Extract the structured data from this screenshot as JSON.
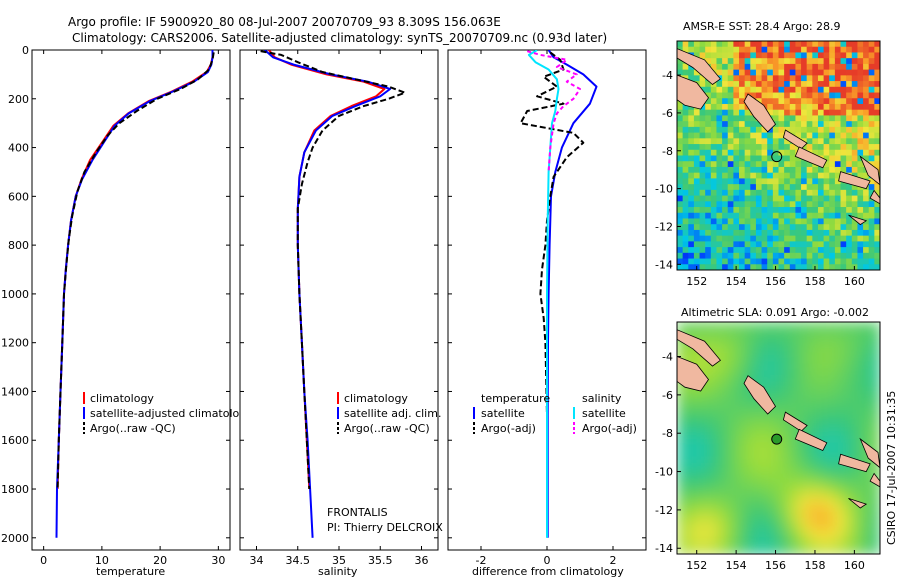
{
  "figure": {
    "title_line1": "Argo profile: IF 5900920_80 08-Jul-2007 20070709_93 8.309S 156.063E",
    "title_line2": "Climatology: CARS2006. Satellite-adjusted climatology: synTS_20070709.nc (0.93d later)",
    "side_stamp": "CSIRO 17-Jul-2007 10:31:35"
  },
  "colors": {
    "climatology": "#ff0000",
    "satellite": "#0000ff",
    "argo": "#000000",
    "salinity_satellite": "#00e5ff",
    "salinity_argo": "#ff00ff"
  },
  "chart_data": [
    {
      "type": "line",
      "name": "temperature",
      "xlabel": "temperature",
      "xlim": [
        -2,
        32
      ],
      "ylim": [
        2050,
        0
      ],
      "xticks": [
        0,
        10,
        20,
        30
      ],
      "yticks": [
        0,
        200,
        400,
        600,
        800,
        1000,
        1200,
        1400,
        1600,
        1800,
        2000
      ],
      "legend": [
        "climatology",
        "satellite-adjusted climatology",
        "Argo(..raw -QC)"
      ],
      "series": [
        {
          "name": "climatology",
          "color_key": "climatology",
          "dash": "",
          "points": [
            [
              29.0,
              0
            ],
            [
              29.0,
              30
            ],
            [
              28.7,
              60
            ],
            [
              28.0,
              90
            ],
            [
              25.5,
              130
            ],
            [
              22.0,
              170
            ],
            [
              18.0,
              210
            ],
            [
              14.5,
              260
            ],
            [
              12.0,
              310
            ],
            [
              10.0,
              380
            ],
            [
              8.0,
              450
            ],
            [
              6.5,
              530
            ],
            [
              5.5,
              600
            ],
            [
              4.7,
              700
            ],
            [
              4.2,
              800
            ],
            [
              3.8,
              900
            ],
            [
              3.5,
              1000
            ],
            [
              3.2,
              1200
            ],
            [
              2.9,
              1400
            ],
            [
              2.6,
              1600
            ],
            [
              2.4,
              1800
            ]
          ]
        },
        {
          "name": "satellite-adjusted climatology",
          "color_key": "satellite",
          "dash": "",
          "points": [
            [
              29.0,
              0
            ],
            [
              29.0,
              30
            ],
            [
              28.8,
              60
            ],
            [
              28.2,
              90
            ],
            [
              25.8,
              130
            ],
            [
              22.2,
              170
            ],
            [
              18.2,
              210
            ],
            [
              14.6,
              260
            ],
            [
              12.2,
              310
            ],
            [
              10.3,
              380
            ],
            [
              8.4,
              450
            ],
            [
              6.6,
              530
            ],
            [
              5.5,
              600
            ],
            [
              4.7,
              700
            ],
            [
              4.2,
              800
            ],
            [
              3.8,
              900
            ],
            [
              3.5,
              1000
            ],
            [
              3.2,
              1200
            ],
            [
              2.9,
              1400
            ],
            [
              2.6,
              1600
            ],
            [
              2.3,
              1800
            ],
            [
              2.2,
              2000
            ]
          ]
        },
        {
          "name": "Argo(..raw -QC)",
          "color_key": "argo",
          "dash": "6,3",
          "points": [
            [
              29.2,
              10
            ],
            [
              29.0,
              40
            ],
            [
              28.4,
              80
            ],
            [
              26.5,
              120
            ],
            [
              23.5,
              160
            ],
            [
              19.5,
              200
            ],
            [
              16.0,
              250
            ],
            [
              13.0,
              300
            ],
            [
              11.0,
              350
            ],
            [
              9.0,
              420
            ],
            [
              7.0,
              500
            ],
            [
              5.8,
              580
            ],
            [
              4.9,
              680
            ],
            [
              4.3,
              780
            ],
            [
              3.9,
              880
            ],
            [
              3.5,
              1000
            ],
            [
              3.2,
              1200
            ],
            [
              2.9,
              1400
            ],
            [
              2.6,
              1600
            ],
            [
              2.4,
              1800
            ]
          ]
        }
      ]
    },
    {
      "type": "line",
      "name": "salinity",
      "xlabel": "salinity",
      "xlim": [
        33.8,
        36.2
      ],
      "ylim": [
        2050,
        0
      ],
      "xticks": [
        34,
        34.5,
        35,
        35.5,
        36
      ],
      "legend": [
        "climatology",
        "satellite adj. clim.",
        "Argo(..raw -QC)"
      ],
      "annotation_line1": "FRONTALIS",
      "annotation_line2": "PI: Thierry DELCROIX",
      "series": [
        {
          "name": "climatology",
          "color_key": "climatology",
          "dash": "",
          "points": [
            [
              34.15,
              0
            ],
            [
              34.22,
              30
            ],
            [
              34.42,
              60
            ],
            [
              34.85,
              100
            ],
            [
              35.3,
              130
            ],
            [
              35.55,
              160
            ],
            [
              35.45,
              190
            ],
            [
              35.15,
              230
            ],
            [
              34.9,
              270
            ],
            [
              34.7,
              330
            ],
            [
              34.58,
              420
            ],
            [
              34.52,
              520
            ],
            [
              34.5,
              650
            ],
            [
              34.5,
              800
            ],
            [
              34.52,
              1000
            ],
            [
              34.55,
              1200
            ],
            [
              34.58,
              1400
            ],
            [
              34.61,
              1600
            ],
            [
              34.64,
              1800
            ]
          ]
        },
        {
          "name": "satellite adj. clim.",
          "color_key": "satellite",
          "dash": "",
          "points": [
            [
              34.1,
              0
            ],
            [
              34.2,
              30
            ],
            [
              34.45,
              60
            ],
            [
              34.9,
              100
            ],
            [
              35.35,
              130
            ],
            [
              35.62,
              160
            ],
            [
              35.5,
              190
            ],
            [
              35.2,
              230
            ],
            [
              34.92,
              270
            ],
            [
              34.72,
              330
            ],
            [
              34.58,
              420
            ],
            [
              34.52,
              520
            ],
            [
              34.5,
              650
            ],
            [
              34.5,
              800
            ],
            [
              34.52,
              1000
            ],
            [
              34.55,
              1200
            ],
            [
              34.58,
              1400
            ],
            [
              34.62,
              1600
            ],
            [
              34.65,
              1800
            ],
            [
              34.68,
              2000
            ]
          ]
        },
        {
          "name": "Argo(..raw -QC)",
          "color_key": "argo",
          "dash": "6,3",
          "points": [
            [
              34.05,
              5
            ],
            [
              34.3,
              20
            ],
            [
              34.5,
              50
            ],
            [
              34.8,
              90
            ],
            [
              35.2,
              120
            ],
            [
              35.6,
              150
            ],
            [
              35.8,
              175
            ],
            [
              35.6,
              200
            ],
            [
              35.3,
              230
            ],
            [
              35.0,
              270
            ],
            [
              34.8,
              330
            ],
            [
              34.68,
              400
            ],
            [
              34.62,
              460
            ],
            [
              34.55,
              550
            ],
            [
              34.5,
              650
            ],
            [
              34.5,
              800
            ],
            [
              34.52,
              1000
            ],
            [
              34.55,
              1200
            ],
            [
              34.58,
              1400
            ],
            [
              34.61,
              1600
            ],
            [
              34.64,
              1800
            ]
          ]
        }
      ]
    },
    {
      "type": "line",
      "name": "difference",
      "xlabel": "difference from climatology",
      "xlim": [
        -3,
        3
      ],
      "ylim": [
        2050,
        0
      ],
      "xticks": [
        -2,
        0,
        2
      ],
      "legend_left_header": "temperature",
      "legend_right_header": "salinity",
      "legend_left": [
        "satellite",
        "Argo(-adj)"
      ],
      "legend_right": [
        "satellite",
        "Argo(-adj)"
      ],
      "series": [
        {
          "name": "temperature satellite",
          "color_key": "satellite",
          "dash": "",
          "points": [
            [
              0.05,
              0
            ],
            [
              0.2,
              30
            ],
            [
              0.6,
              60
            ],
            [
              1.1,
              100
            ],
            [
              1.5,
              150
            ],
            [
              1.3,
              220
            ],
            [
              0.8,
              300
            ],
            [
              0.45,
              400
            ],
            [
              0.25,
              500
            ],
            [
              0.12,
              600
            ],
            [
              0.08,
              800
            ],
            [
              0.05,
              1000
            ],
            [
              0.03,
              1200
            ],
            [
              0.02,
              1500
            ],
            [
              0.02,
              1800
            ],
            [
              0.02,
              2000
            ]
          ]
        },
        {
          "name": "temperature Argo(-adj)",
          "color_key": "argo",
          "dash": "6,3",
          "points": [
            [
              0.1,
              10
            ],
            [
              0.4,
              40
            ],
            [
              0.5,
              80
            ],
            [
              -0.1,
              110
            ],
            [
              0.3,
              150
            ],
            [
              -0.3,
              190
            ],
            [
              0.5,
              220
            ],
            [
              -0.6,
              250
            ],
            [
              -0.8,
              300
            ],
            [
              0.8,
              340
            ],
            [
              1.1,
              380
            ],
            [
              0.6,
              440
            ],
            [
              0.4,
              480
            ],
            [
              0.2,
              520
            ],
            [
              0.1,
              600
            ],
            [
              0.0,
              700
            ],
            [
              -0.05,
              800
            ],
            [
              -0.15,
              900
            ],
            [
              -0.2,
              1000
            ],
            [
              -0.1,
              1100
            ],
            [
              -0.05,
              1200
            ],
            [
              0.0,
              1500
            ],
            [
              0.0,
              1800
            ]
          ]
        },
        {
          "name": "salinity satellite",
          "color_key": "salinity_satellite",
          "dash": "",
          "points": [
            [
              -0.3,
              0
            ],
            [
              -0.55,
              20
            ],
            [
              -0.35,
              50
            ],
            [
              0.05,
              80
            ],
            [
              0.3,
              120
            ],
            [
              0.35,
              160
            ],
            [
              0.3,
              200
            ],
            [
              0.25,
              250
            ],
            [
              0.15,
              300
            ],
            [
              0.1,
              400
            ],
            [
              0.05,
              500
            ],
            [
              0.02,
              700
            ],
            [
              0.0,
              1000
            ],
            [
              0.0,
              1500
            ],
            [
              0.0,
              2000
            ]
          ]
        },
        {
          "name": "salinity Argo(-adj)",
          "color_key": "salinity_argo",
          "dash": "4,3",
          "points": [
            [
              -0.6,
              5
            ],
            [
              -0.2,
              20
            ],
            [
              0.6,
              40
            ],
            [
              0.3,
              70
            ],
            [
              0.9,
              100
            ],
            [
              0.6,
              130
            ],
            [
              1.0,
              160
            ],
            [
              0.8,
              200
            ],
            [
              0.5,
              230
            ],
            [
              0.3,
              260
            ],
            [
              0.2,
              300
            ],
            [
              0.1,
              400
            ],
            [
              0.05,
              500
            ]
          ]
        }
      ]
    },
    {
      "type": "heatmap",
      "name": "sst_map",
      "title": "AMSR-E SST: 28.4 Argo: 28.9",
      "xlim": [
        151,
        161.3
      ],
      "ylim": [
        -14.3,
        -2.2
      ],
      "xticks": [
        152,
        154,
        156,
        158,
        160
      ],
      "yticks": [
        -4,
        -6,
        -8,
        -10,
        -12,
        -14
      ],
      "marker": [
        156.06,
        -8.31
      ]
    },
    {
      "type": "heatmap",
      "name": "sla_map",
      "title": "Altimetric SLA: 0.091 Argo: -0.002",
      "xlim": [
        151,
        161.3
      ],
      "ylim": [
        -14.3,
        -2.2
      ],
      "xticks": [
        152,
        154,
        156,
        158,
        160
      ],
      "yticks": [
        -4,
        -6,
        -8,
        -10,
        -12,
        -14
      ],
      "marker": [
        156.06,
        -8.31
      ]
    }
  ]
}
